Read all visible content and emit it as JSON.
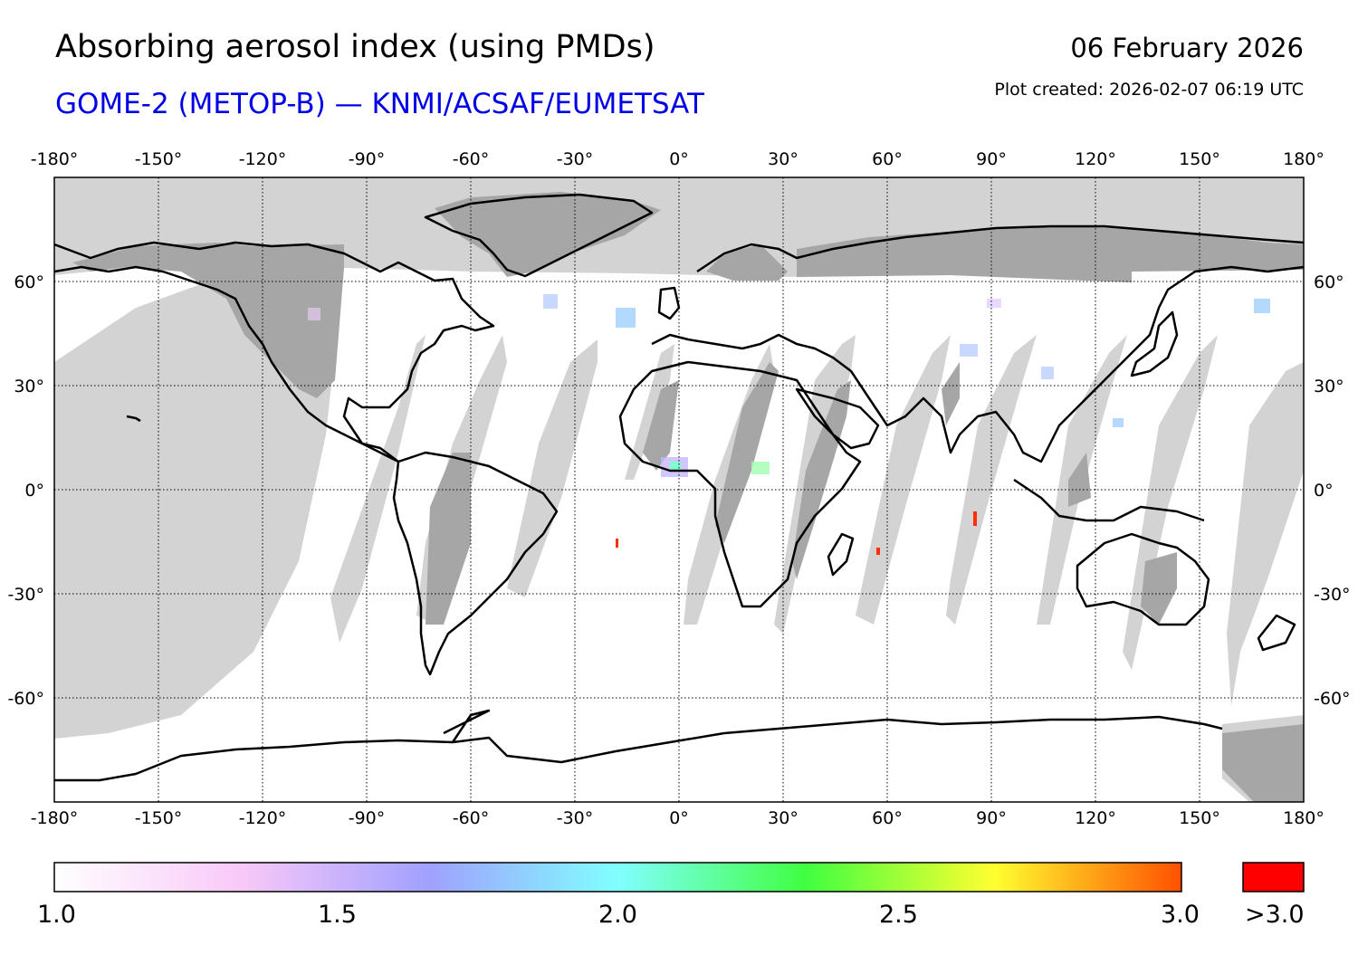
{
  "header": {
    "title": "Absorbing aerosol index (using PMDs)",
    "subtitle": "GOME-2 (METOP-B) — KNMI/ACSAF/EUMETSAT",
    "date": "06 February 2026",
    "plot_created": "Plot created: 2026-02-07 06:19 UTC"
  },
  "map": {
    "lon_range": [
      -180,
      180
    ],
    "lat_range": [
      -90,
      90
    ],
    "lon_ticks": [
      "-180°",
      "-150°",
      "-120°",
      "-90°",
      "-60°",
      "-30°",
      "0°",
      "30°",
      "60°",
      "90°",
      "120°",
      "150°",
      "180°"
    ],
    "lat_ticks": [
      "60°",
      "30°",
      "0°",
      "-30°",
      "-60°"
    ],
    "colors": {
      "no_data": "#d3d3d3",
      "land_no_data": "#a6a6a6",
      "coastline": "#000000",
      "graticule": "#000000"
    }
  },
  "colorbar": {
    "labels": [
      "1.0",
      "1.5",
      "2.0",
      "2.5",
      "3.0"
    ],
    "over_label": ">3.0",
    "over_color": "#ff0000",
    "stops": [
      "#ffffff",
      "#f8c8f8",
      "#a0a0ff",
      "#80ffff",
      "#40ff40",
      "#ffff30",
      "#ff5000"
    ]
  }
}
